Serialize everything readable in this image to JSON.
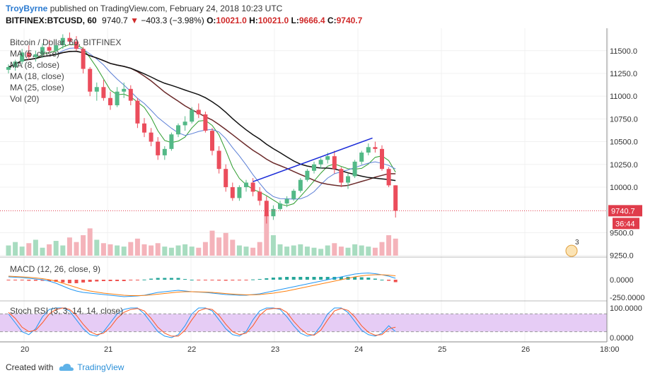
{
  "header": {
    "author": "TroyByrne",
    "published_text": "published on TradingView.com, February 24, 2018 10:23 UTC",
    "symbol": "BITFINEX:BTCUSD, 60",
    "last": "9740.7",
    "change_arrow": "▼",
    "change": "−403.3 (−3.98%)",
    "o_label": "O:",
    "o": "10021.0",
    "h_label": "H:",
    "h": "10021.0",
    "l_label": "L:",
    "l": "9666.4",
    "c_label": "C:",
    "c": "9740.7"
  },
  "legend": {
    "title": "Bitcoin / Dollar, 60, BITFINEX",
    "ma5": "MA (5, close)",
    "ma8": "MA (8, close)",
    "ma18": "MA (18, close)",
    "ma25": "MA (25, close)",
    "vol": "Vol (20)",
    "macd": "MACD (12, 26, close, 9)",
    "stoch": "Stoch RSI (3, 3, 14, 14, close)"
  },
  "price_axis": {
    "ticks": [
      "11500.0",
      "11250.0",
      "11000.0",
      "10750.0",
      "10500.0",
      "10250.0",
      "10000.0",
      "9500.0",
      "9250.0"
    ],
    "last_price_label": "9740.7",
    "countdown_label": "36:44"
  },
  "macd_axis": {
    "ticks": [
      "0.0000",
      "-250.0000"
    ]
  },
  "stoch_axis": {
    "ticks": [
      "100.0000",
      "0.0000"
    ]
  },
  "time_axis": {
    "labels": [
      "20",
      "21",
      "22",
      "23",
      "24",
      "25",
      "26",
      "18:00"
    ]
  },
  "events_badge": "3",
  "footer": {
    "created_with": "Created with",
    "brand": "TradingView"
  },
  "colors": {
    "up": "#53b987",
    "down": "#eb4d5c",
    "ma5": "#2e9d2e",
    "ma8": "#5b7fd6",
    "ma18": "#6b2a2a",
    "ma25": "#111111",
    "trendline": "#1a2bd8",
    "macd": "#2196f3",
    "signal": "#ff7f0e",
    "stoch_k": "#2196f3",
    "stoch_d": "#ff5722",
    "stoch_band": "#e6ccf5",
    "price_tag": "#e03c4b"
  },
  "chart_data": {
    "type": "candlestick",
    "title": "Bitcoin / Dollar, 60, BITFINEX",
    "x_labels": [
      "20",
      "21",
      "22",
      "23",
      "24",
      "25",
      "26",
      "18:00"
    ],
    "ylim": [
      9200,
      11700
    ],
    "last": 9740.7,
    "trendline": {
      "from": [
        9.0,
        10060
      ],
      "to": [
        13.4,
        10540
      ]
    },
    "candles": [
      [
        11290,
        11350,
        11250,
        11320
      ],
      [
        11320,
        11400,
        11280,
        11380
      ],
      [
        11380,
        11520,
        11350,
        11480
      ],
      [
        11480,
        11560,
        11400,
        11430
      ],
      [
        11430,
        11500,
        11380,
        11460
      ],
      [
        11460,
        11580,
        11420,
        11540
      ],
      [
        11540,
        11620,
        11480,
        11500
      ],
      [
        11500,
        11600,
        11450,
        11560
      ],
      [
        11560,
        11680,
        11520,
        11640
      ],
      [
        11640,
        11700,
        11560,
        11600
      ],
      [
        11600,
        11660,
        11500,
        11520
      ],
      [
        11520,
        11540,
        11250,
        11300
      ],
      [
        11300,
        11320,
        11000,
        11050
      ],
      [
        11050,
        11150,
        10950,
        11100
      ],
      [
        11100,
        11180,
        10950,
        10980
      ],
      [
        10980,
        11050,
        10850,
        10900
      ],
      [
        10900,
        11100,
        10880,
        11050
      ],
      [
        11050,
        11150,
        10980,
        11080
      ],
      [
        11080,
        11120,
        10900,
        10950
      ],
      [
        10950,
        10980,
        10650,
        10700
      ],
      [
        10700,
        10760,
        10550,
        10600
      ],
      [
        10600,
        10650,
        10450,
        10500
      ],
      [
        10500,
        10550,
        10300,
        10350
      ],
      [
        10350,
        10450,
        10300,
        10420
      ],
      [
        10420,
        10600,
        10400,
        10580
      ],
      [
        10580,
        10700,
        10550,
        10680
      ],
      [
        10680,
        10780,
        10620,
        10720
      ],
      [
        10720,
        10880,
        10700,
        10850
      ],
      [
        10850,
        10920,
        10760,
        10800
      ],
      [
        10800,
        10830,
        10600,
        10620
      ],
      [
        10620,
        10650,
        10350,
        10400
      ],
      [
        10400,
        10450,
        10150,
        10200
      ],
      [
        10200,
        10250,
        9950,
        10000
      ],
      [
        10000,
        10050,
        9850,
        9880
      ],
      [
        9880,
        10020,
        9850,
        10000
      ],
      [
        10000,
        10080,
        9950,
        10050
      ],
      [
        10050,
        10100,
        9900,
        9950
      ],
      [
        9950,
        10000,
        9800,
        9850
      ],
      [
        9850,
        9900,
        9600,
        9680
      ],
      [
        9680,
        9800,
        9640,
        9760
      ],
      [
        9760,
        9850,
        9740,
        9820
      ],
      [
        9820,
        9900,
        9780,
        9870
      ],
      [
        9870,
        9980,
        9850,
        9960
      ],
      [
        9960,
        10100,
        9940,
        10080
      ],
      [
        10080,
        10200,
        10060,
        10180
      ],
      [
        10180,
        10280,
        10150,
        10250
      ],
      [
        10250,
        10320,
        10200,
        10300
      ],
      [
        10300,
        10380,
        10260,
        10340
      ],
      [
        10340,
        10400,
        10150,
        10200
      ],
      [
        10200,
        10220,
        10000,
        10050
      ],
      [
        10050,
        10150,
        9980,
        10120
      ],
      [
        10120,
        10300,
        10100,
        10280
      ],
      [
        10280,
        10400,
        10250,
        10380
      ],
      [
        10380,
        10480,
        10350,
        10440
      ],
      [
        10440,
        10500,
        10380,
        10420
      ],
      [
        10420,
        10460,
        10180,
        10200
      ],
      [
        10200,
        10220,
        10000,
        10020
      ],
      [
        10020,
        10021,
        9666,
        9741
      ]
    ],
    "volume": [
      45,
      60,
      40,
      55,
      70,
      35,
      50,
      65,
      45,
      80,
      60,
      90,
      120,
      70,
      55,
      50,
      45,
      40,
      60,
      75,
      50,
      45,
      55,
      40,
      35,
      45,
      50,
      40,
      35,
      60,
      110,
      80,
      100,
      70,
      45,
      40,
      35,
      60,
      180,
      90,
      50,
      40,
      45,
      50,
      40,
      35,
      30,
      45,
      55,
      40,
      35,
      50,
      45,
      40,
      35,
      60,
      90,
      75
    ],
    "macd": [
      40,
      35,
      30,
      20,
      10,
      0,
      -20,
      -50,
      -90,
      -130,
      -160,
      -180,
      -190,
      -200,
      -210,
      -220,
      -230,
      -240,
      -235,
      -230,
      -220,
      -200,
      -180,
      -170,
      -160,
      -150,
      -160,
      -170,
      -175,
      -180,
      -190,
      -200,
      -210,
      -215,
      -220,
      -220,
      -210,
      -200,
      -180,
      -160,
      -140,
      -120,
      -100,
      -80,
      -60,
      -40,
      -20,
      0,
      20,
      40,
      60,
      80,
      90,
      95,
      85,
      70,
      50,
      20
    ],
    "signal": [
      50,
      45,
      40,
      35,
      25,
      15,
      0,
      -20,
      -50,
      -80,
      -110,
      -140,
      -160,
      -175,
      -190,
      -200,
      -210,
      -220,
      -225,
      -225,
      -222,
      -215,
      -205,
      -195,
      -185,
      -175,
      -170,
      -170,
      -172,
      -175,
      -180,
      -188,
      -196,
      -204,
      -210,
      -214,
      -214,
      -210,
      -200,
      -190,
      -175,
      -160,
      -140,
      -120,
      -100,
      -80,
      -60,
      -40,
      -20,
      0,
      20,
      40,
      55,
      65,
      70,
      70,
      65,
      55
    ],
    "stoch_k": [
      80,
      50,
      20,
      10,
      30,
      70,
      95,
      100,
      100,
      90,
      60,
      30,
      10,
      5,
      20,
      50,
      80,
      95,
      100,
      100,
      80,
      50,
      20,
      5,
      0,
      10,
      40,
      80,
      100,
      100,
      90,
      60,
      30,
      10,
      5,
      20,
      60,
      90,
      100,
      100,
      95,
      70,
      40,
      15,
      5,
      10,
      40,
      80,
      100,
      100,
      85,
      55,
      25,
      10,
      5,
      15,
      40,
      20
    ],
    "stoch_d": [
      85,
      65,
      35,
      20,
      25,
      50,
      80,
      95,
      100,
      95,
      75,
      45,
      20,
      10,
      15,
      35,
      65,
      85,
      95,
      98,
      90,
      65,
      35,
      15,
      5,
      5,
      25,
      60,
      90,
      98,
      95,
      75,
      45,
      20,
      10,
      15,
      40,
      75,
      95,
      98,
      98,
      85,
      55,
      30,
      12,
      8,
      25,
      60,
      90,
      98,
      92,
      70,
      40,
      18,
      8,
      10,
      30,
      35
    ]
  }
}
